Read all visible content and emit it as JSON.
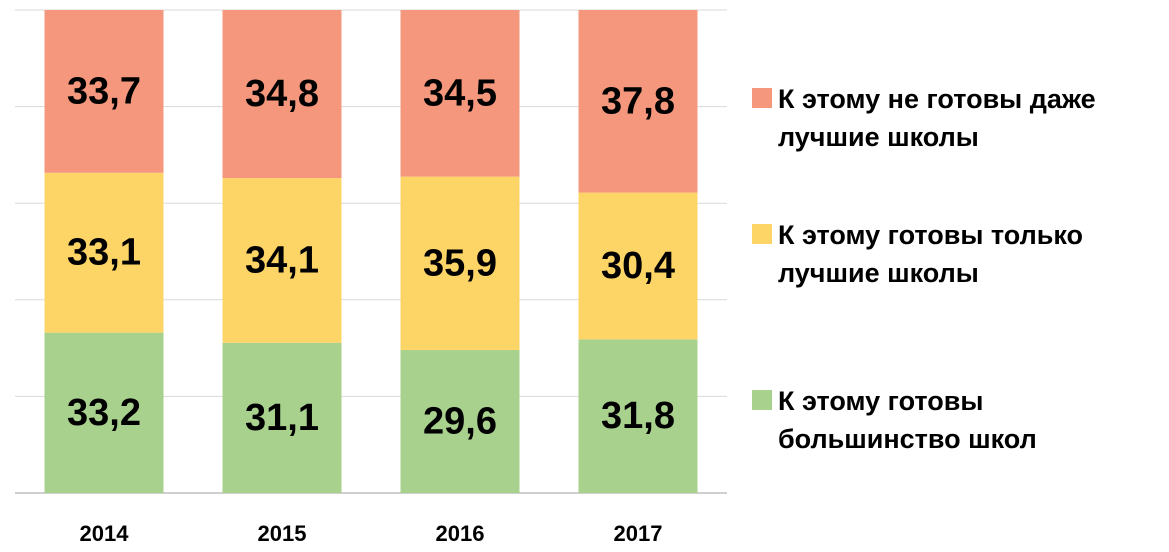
{
  "chart_data": {
    "type": "stacked_bar",
    "categories": [
      "2014",
      "2015",
      "2016",
      "2017"
    ],
    "series": [
      {
        "name": "К этому готовы большинство школ",
        "color": "#a9d18e",
        "values": [
          33.2,
          31.1,
          29.6,
          31.8
        ],
        "value_labels": [
          "33,2",
          "31,1",
          "29,6",
          "31,8"
        ]
      },
      {
        "name": "К этому готовы только лучшие школы",
        "color": "#fdd466",
        "values": [
          33.1,
          34.1,
          35.9,
          30.4
        ],
        "value_labels": [
          "33,1",
          "34,1",
          "35,9",
          "30,4"
        ]
      },
      {
        "name": "К этому не готовы даже лучшие школы",
        "color": "#f4977c",
        "values": [
          33.7,
          34.8,
          34.5,
          37.8
        ],
        "value_labels": [
          "33,7",
          "34,8",
          "34,5",
          "37,8"
        ]
      }
    ],
    "ylim": [
      0,
      100
    ],
    "yticks": [
      0,
      20,
      40,
      60,
      80,
      100
    ],
    "grid": true,
    "legend": "right"
  }
}
